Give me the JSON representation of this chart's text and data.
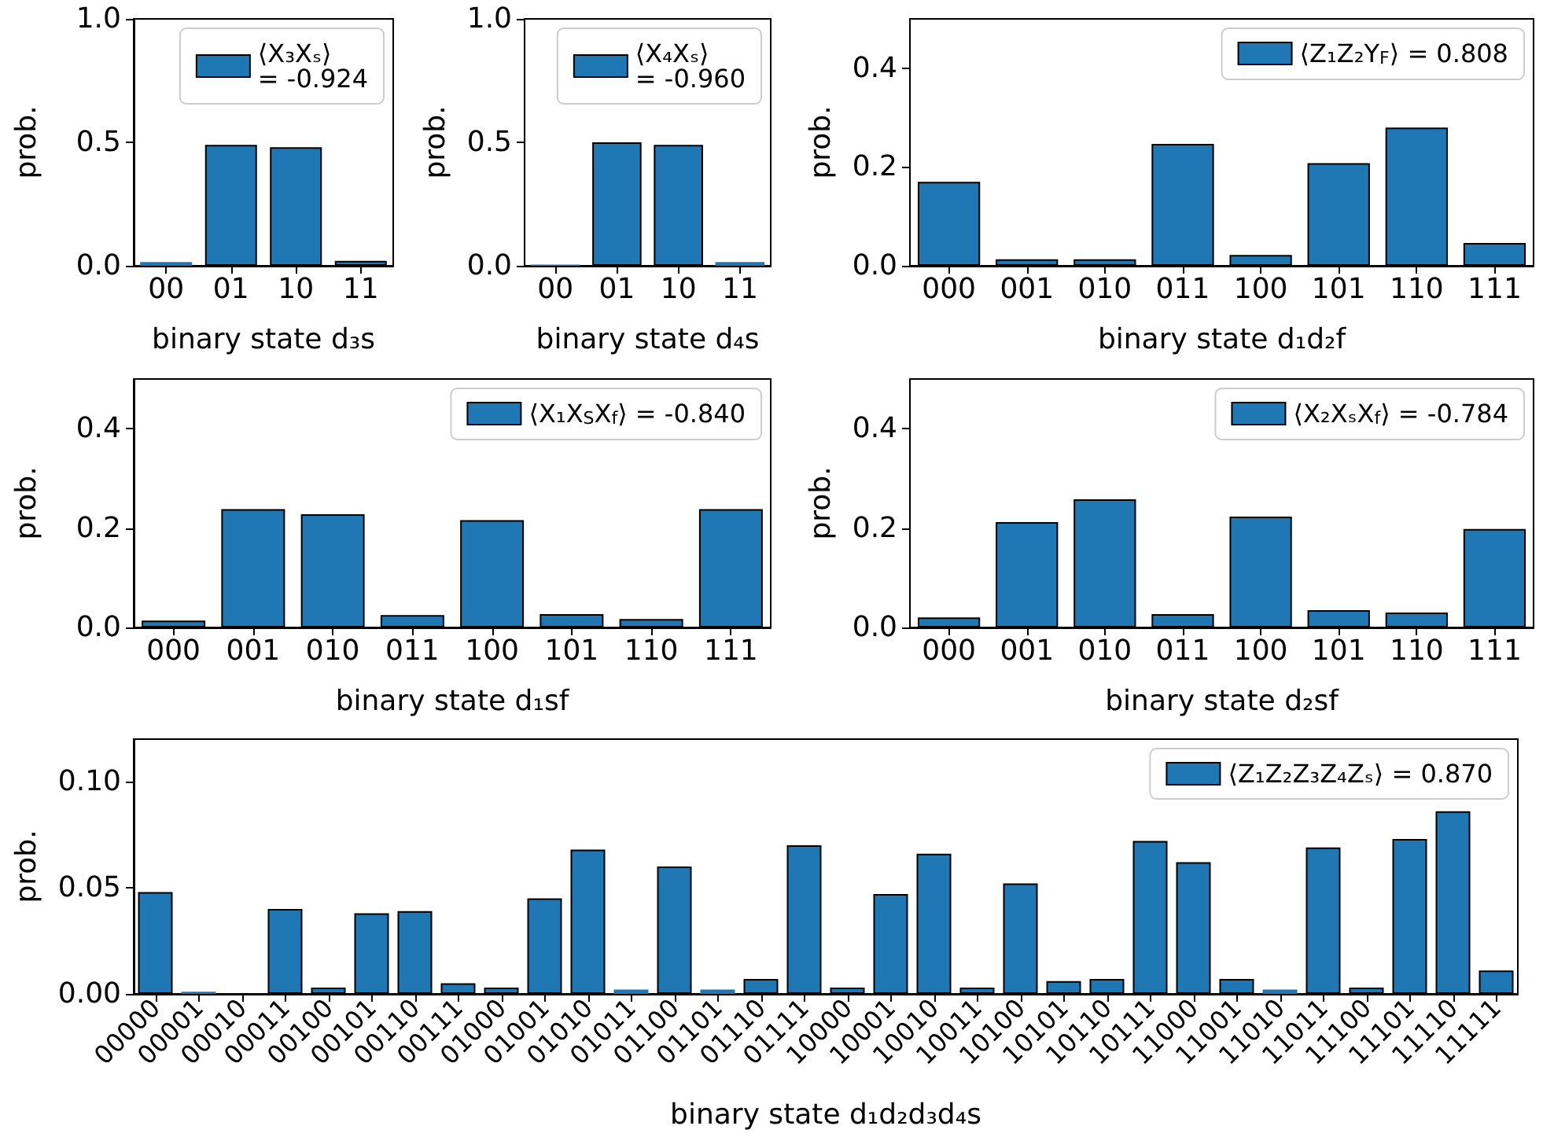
{
  "chart_data": [
    {
      "type": "bar",
      "xlabel": "binary state d₃s",
      "ylabel": "prob.",
      "categories": [
        "00",
        "01",
        "10",
        "11"
      ],
      "ylim": [
        0,
        1
      ],
      "yticks": [
        {
          "value": 0,
          "label": "0.0"
        },
        {
          "value": 0.5,
          "label": "0.5"
        },
        {
          "value": 1,
          "label": "1.0"
        }
      ],
      "legend": "top right",
      "grid": false,
      "series": [
        {
          "name": "⟨X₃Xₛ⟩ = -0.924",
          "color": "#1f77b4",
          "values": [
            0.015,
            0.49,
            0.48,
            0.02
          ]
        }
      ]
    },
    {
      "type": "bar",
      "xlabel": "binary state d₄s",
      "ylabel": "prob.",
      "categories": [
        "00",
        "01",
        "10",
        "11"
      ],
      "ylim": [
        0,
        1
      ],
      "yticks": [
        {
          "value": 0,
          "label": "0.0"
        },
        {
          "value": 0.5,
          "label": "0.5"
        },
        {
          "value": 1,
          "label": "1.0"
        }
      ],
      "legend": "top right",
      "grid": false,
      "series": [
        {
          "name": "⟨X₄Xₛ⟩ = -0.960",
          "color": "#1f77b4",
          "values": [
            0.005,
            0.5,
            0.49,
            0.015
          ]
        }
      ]
    },
    {
      "type": "bar",
      "xlabel": "binary state d₁d₂f",
      "ylabel": "prob.",
      "categories": [
        "000",
        "001",
        "010",
        "011",
        "100",
        "101",
        "110",
        "111"
      ],
      "ylim": [
        0,
        0.5
      ],
      "yticks": [
        {
          "value": 0,
          "label": "0.0"
        },
        {
          "value": 0.2,
          "label": "0.2"
        },
        {
          "value": 0.4,
          "label": "0.4"
        }
      ],
      "legend": "top right",
      "grid": false,
      "series": [
        {
          "name": "⟨Z₁Z₂Y$_{F}$⟩ = 0.808",
          "color": "#1f77b4",
          "values": [
            0.17,
            0.013,
            0.013,
            0.247,
            0.022,
            0.208,
            0.28,
            0.046
          ]
        }
      ]
    },
    {
      "type": "bar",
      "xlabel": "binary state d₁sf",
      "ylabel": "prob.",
      "categories": [
        "000",
        "001",
        "010",
        "011",
        "100",
        "101",
        "110",
        "111"
      ],
      "ylim": [
        0,
        0.5
      ],
      "yticks": [
        {
          "value": 0,
          "label": "0.0"
        },
        {
          "value": 0.2,
          "label": "0.2"
        },
        {
          "value": 0.4,
          "label": "0.4"
        }
      ],
      "legend": "top right",
      "grid": false,
      "series": [
        {
          "name": "⟨X₁X$_{S}$X$_{f}$⟩ = -0.840",
          "color": "#1f77b4",
          "values": [
            0.014,
            0.238,
            0.228,
            0.025,
            0.216,
            0.027,
            0.017,
            0.238
          ]
        }
      ]
    },
    {
      "type": "bar",
      "xlabel": "binary state d₂sf",
      "ylabel": "prob.",
      "categories": [
        "000",
        "001",
        "010",
        "011",
        "100",
        "101",
        "110",
        "111"
      ],
      "ylim": [
        0,
        0.5
      ],
      "yticks": [
        {
          "value": 0,
          "label": "0.0"
        },
        {
          "value": 0.2,
          "label": "0.2"
        },
        {
          "value": 0.4,
          "label": "0.4"
        }
      ],
      "legend": "top right",
      "grid": false,
      "series": [
        {
          "name": "⟨X₂XₛX$_{f}$⟩ = -0.784",
          "color": "#1f77b4",
          "values": [
            0.02,
            0.212,
            0.258,
            0.027,
            0.223,
            0.035,
            0.03,
            0.198
          ]
        }
      ]
    },
    {
      "type": "bar",
      "xlabel": "binary state d₁d₂d₃d₄s",
      "ylabel": "prob.",
      "categories": [
        "00000",
        "00001",
        "00010",
        "00011",
        "00100",
        "00101",
        "00110",
        "00111",
        "01000",
        "01001",
        "01010",
        "01011",
        "01100",
        "01101",
        "01110",
        "01111",
        "10000",
        "10001",
        "10010",
        "10011",
        "10100",
        "10101",
        "10110",
        "10111",
        "11000",
        "11001",
        "11010",
        "11011",
        "11100",
        "11101",
        "11110",
        "11111"
      ],
      "ylim": [
        0,
        0.12
      ],
      "yticks": [
        {
          "value": 0,
          "label": "0.00"
        },
        {
          "value": 0.05,
          "label": "0.05"
        },
        {
          "value": 0.1,
          "label": "0.10"
        }
      ],
      "legend": "top right",
      "grid": false,
      "series": [
        {
          "name": "⟨Z₁Z₂Z₃Z₄Zₛ⟩ = 0.870",
          "color": "#1f77b4",
          "values": [
            0.048,
            0.001,
            0,
            0.04,
            0.003,
            0.038,
            0.039,
            0.005,
            0.003,
            0.045,
            0.068,
            0.002,
            0.06,
            0.002,
            0.007,
            0.07,
            0.003,
            0.047,
            0.066,
            0.003,
            0.052,
            0.006,
            0.007,
            0.072,
            0.062,
            0.007,
            0.002,
            0.069,
            0.003,
            0.073,
            0.086,
            0.011
          ]
        }
      ]
    }
  ]
}
